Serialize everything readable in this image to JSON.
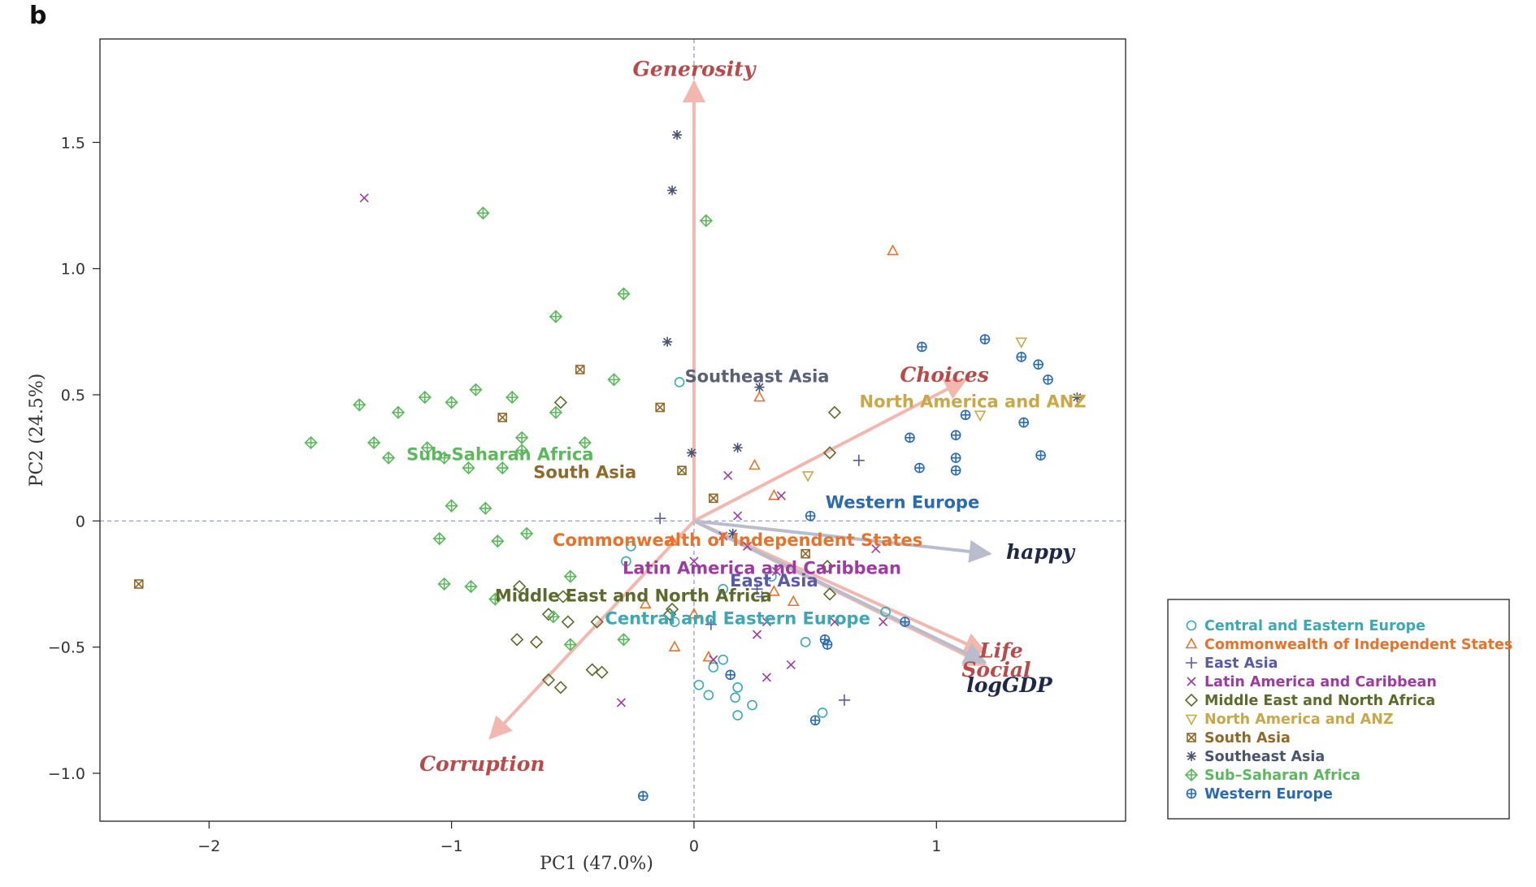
{
  "panel_letter": "b",
  "chart_data": {
    "type": "scatter",
    "subtype": "pca-biplot",
    "title": "",
    "xlabel": "PC1 (47.0%)",
    "ylabel": "PC2 (24.5%)",
    "xlim": [
      -2.45,
      1.78
    ],
    "ylim": [
      -1.19,
      1.91
    ],
    "xticks": [
      -2,
      -1,
      0,
      1
    ],
    "xtick_labels": [
      "−2",
      "−1",
      "0",
      "1"
    ],
    "yticks": [
      -1.0,
      -0.5,
      0,
      0.5,
      1.0,
      1.5
    ],
    "ytick_labels": [
      "−1.0",
      "−0.5",
      "0",
      "0.5",
      "1.0",
      "1.5"
    ],
    "zero_lines": true,
    "grid": false,
    "legend_position": "bottom-right, outside plot",
    "series": [
      {
        "name": "Central and Eastern Europe",
        "color": "#3ba8b5",
        "marker": "circle",
        "points": [
          [
            -0.06,
            0.55
          ],
          [
            -0.28,
            -0.16
          ],
          [
            -0.26,
            -0.1
          ],
          [
            0.12,
            -0.27
          ],
          [
            -0.08,
            -0.4
          ],
          [
            0.08,
            -0.58
          ],
          [
            0.12,
            -0.55
          ],
          [
            0.02,
            -0.65
          ],
          [
            0.06,
            -0.69
          ],
          [
            0.18,
            -0.66
          ],
          [
            0.17,
            -0.7
          ],
          [
            0.24,
            -0.73
          ],
          [
            0.18,
            -0.77
          ],
          [
            0.53,
            -0.76
          ],
          [
            0.46,
            -0.48
          ],
          [
            0.79,
            -0.36
          ],
          [
            0.32,
            -0.22
          ]
        ]
      },
      {
        "name": "Commonwealth of Independent States",
        "color": "#e8722a",
        "marker": "triangle-up",
        "points": [
          [
            0.82,
            1.07
          ],
          [
            0.27,
            0.49
          ],
          [
            0.25,
            0.22
          ],
          [
            0.33,
            0.1
          ],
          [
            -0.09,
            -0.08
          ],
          [
            -0.2,
            -0.33
          ],
          [
            0.0,
            -0.37
          ],
          [
            -0.08,
            -0.5
          ],
          [
            0.06,
            -0.54
          ],
          [
            0.33,
            -0.28
          ],
          [
            0.41,
            -0.32
          ]
        ]
      },
      {
        "name": "East Asia",
        "color": "#5a5aa8",
        "marker": "plus",
        "points": [
          [
            0.68,
            0.24
          ],
          [
            -0.14,
            0.01
          ],
          [
            0.28,
            -0.3
          ],
          [
            0.26,
            -0.27
          ],
          [
            0.62,
            -0.71
          ],
          [
            0.07,
            -0.41
          ]
        ]
      },
      {
        "name": "Latin America and Caribbean",
        "color": "#9c3ca0",
        "marker": "cross",
        "points": [
          [
            -1.36,
            1.28
          ],
          [
            0.14,
            0.18
          ],
          [
            0.36,
            0.1
          ],
          [
            0.18,
            0.02
          ],
          [
            0.12,
            -0.06
          ],
          [
            0.22,
            -0.1
          ],
          [
            0.0,
            -0.16
          ],
          [
            0.34,
            -0.2
          ],
          [
            0.3,
            -0.4
          ],
          [
            0.4,
            -0.57
          ],
          [
            0.3,
            -0.62
          ],
          [
            0.58,
            -0.4
          ],
          [
            0.75,
            -0.11
          ],
          [
            0.78,
            -0.4
          ],
          [
            -0.3,
            -0.72
          ],
          [
            0.08,
            -0.55
          ],
          [
            0.26,
            -0.45
          ]
        ]
      },
      {
        "name": "Middle East and North Africa",
        "color": "#5c6b2c",
        "marker": "diamond",
        "points": [
          [
            -0.55,
            0.47
          ],
          [
            0.56,
            0.27
          ],
          [
            0.58,
            0.43
          ],
          [
            0.55,
            -0.18
          ],
          [
            0.56,
            -0.29
          ],
          [
            -0.55,
            -0.66
          ],
          [
            -0.6,
            -0.63
          ],
          [
            -0.65,
            -0.48
          ],
          [
            -0.73,
            -0.47
          ],
          [
            -0.38,
            -0.6
          ],
          [
            -0.6,
            -0.37
          ],
          [
            -0.54,
            -0.3
          ],
          [
            -0.72,
            -0.26
          ],
          [
            -0.52,
            -0.4
          ],
          [
            -0.42,
            -0.59
          ],
          [
            -0.4,
            -0.4
          ],
          [
            -0.09,
            -0.35
          ],
          [
            -0.1,
            -0.37
          ]
        ]
      },
      {
        "name": "North America and ANZ",
        "color": "#c9a84a",
        "marker": "triangle-down",
        "points": [
          [
            1.35,
            0.71
          ],
          [
            1.18,
            0.42
          ],
          [
            0.47,
            0.18
          ]
        ]
      },
      {
        "name": "South Asia",
        "color": "#8f6a2c",
        "marker": "square-x",
        "points": [
          [
            -2.29,
            -0.25
          ],
          [
            -0.47,
            0.6
          ],
          [
            -0.79,
            0.41
          ],
          [
            -0.14,
            0.45
          ],
          [
            -0.05,
            0.2
          ],
          [
            0.08,
            0.09
          ],
          [
            0.46,
            -0.13
          ]
        ]
      },
      {
        "name": "Southeast Asia",
        "color": "#4a5470",
        "marker": "asterisk",
        "points": [
          [
            -0.07,
            1.53
          ],
          [
            -0.09,
            1.31
          ],
          [
            -0.11,
            0.71
          ],
          [
            0.27,
            0.53
          ],
          [
            0.18,
            0.29
          ],
          [
            -0.01,
            0.27
          ],
          [
            1.58,
            0.49
          ],
          [
            0.16,
            -0.05
          ]
        ]
      },
      {
        "name": "Sub–Saharan Africa",
        "color": "#5cb85c",
        "marker": "diamond-plus",
        "points": [
          [
            -0.87,
            1.22
          ],
          [
            0.05,
            1.19
          ],
          [
            -0.29,
            0.9
          ],
          [
            -0.57,
            0.81
          ],
          [
            -0.33,
            0.56
          ],
          [
            -1.38,
            0.46
          ],
          [
            -1.22,
            0.43
          ],
          [
            -1.11,
            0.49
          ],
          [
            -1.0,
            0.47
          ],
          [
            -0.9,
            0.52
          ],
          [
            -0.75,
            0.49
          ],
          [
            -0.57,
            0.43
          ],
          [
            -1.58,
            0.31
          ],
          [
            -1.32,
            0.31
          ],
          [
            -1.26,
            0.25
          ],
          [
            -1.1,
            0.29
          ],
          [
            -1.03,
            0.25
          ],
          [
            -0.93,
            0.21
          ],
          [
            -0.79,
            0.21
          ],
          [
            -0.71,
            0.28
          ],
          [
            -0.71,
            0.33
          ],
          [
            -0.45,
            0.31
          ],
          [
            -1.0,
            0.06
          ],
          [
            -0.86,
            0.05
          ],
          [
            -1.05,
            -0.07
          ],
          [
            -0.81,
            -0.08
          ],
          [
            -0.69,
            -0.05
          ],
          [
            -1.03,
            -0.25
          ],
          [
            -0.92,
            -0.26
          ],
          [
            -0.82,
            -0.31
          ],
          [
            -0.58,
            -0.38
          ],
          [
            -0.51,
            -0.22
          ],
          [
            -0.51,
            -0.49
          ],
          [
            -0.29,
            -0.47
          ]
        ]
      },
      {
        "name": "Western Europe",
        "color": "#2a6bb0",
        "marker": "circle-plus",
        "points": [
          [
            0.94,
            0.69
          ],
          [
            1.2,
            0.72
          ],
          [
            1.35,
            0.65
          ],
          [
            1.42,
            0.62
          ],
          [
            1.46,
            0.56
          ],
          [
            1.12,
            0.42
          ],
          [
            1.36,
            0.39
          ],
          [
            1.43,
            0.26
          ],
          [
            0.89,
            0.33
          ],
          [
            1.08,
            0.34
          ],
          [
            1.08,
            0.25
          ],
          [
            1.08,
            0.2
          ],
          [
            0.93,
            0.21
          ],
          [
            0.48,
            0.02
          ],
          [
            0.87,
            -0.4
          ],
          [
            0.54,
            -0.47
          ],
          [
            0.55,
            -0.49
          ],
          [
            0.5,
            -0.79
          ],
          [
            0.15,
            -0.61
          ],
          [
            -0.21,
            -1.09
          ]
        ]
      }
    ],
    "loadings": [
      {
        "name": "Generosity",
        "x": 0.0,
        "y": 1.74,
        "color": "#b84a4a",
        "arrow_color": "#f2b8b0"
      },
      {
        "name": "Choices",
        "x": 1.12,
        "y": 0.56,
        "color": "#b84a4a",
        "arrow_color": "#f2b8b0"
      },
      {
        "name": "happy",
        "x": 1.22,
        "y": -0.13,
        "color": "#1e2a45",
        "arrow_color": "#b8bccc"
      },
      {
        "name": "Life",
        "x": 1.2,
        "y": -0.52,
        "color": "#b84a4a",
        "arrow_color": "#f2b8b0"
      },
      {
        "name": "Social",
        "x": 1.2,
        "y": -0.57,
        "color": "#b84a4a",
        "arrow_color": "#f2b8b0"
      },
      {
        "name": "logGDP",
        "x": 1.2,
        "y": -0.56,
        "color": "#1e2a45",
        "arrow_color": "#b8bccc"
      },
      {
        "name": "Corruption",
        "x": -0.84,
        "y": -0.86,
        "color": "#b84a4a",
        "arrow_color": "#f2b8b0"
      }
    ],
    "group_labels": [
      {
        "name": "Southeast Asia",
        "x": 0.26,
        "y": 0.57,
        "color": "#5a6078"
      },
      {
        "name": "North America and ANZ",
        "x": 1.15,
        "y": 0.47,
        "color": "#c9a84a"
      },
      {
        "name": "Sub–Saharan Africa",
        "x": -0.8,
        "y": 0.26,
        "color": "#5cb85c"
      },
      {
        "name": "South Asia",
        "x": -0.45,
        "y": 0.19,
        "color": "#8f6a2c"
      },
      {
        "name": "Western Europe",
        "x": 0.86,
        "y": 0.07,
        "color": "#2a6bb0"
      },
      {
        "name": "Commonwealth of Independent States",
        "x": 0.18,
        "y": -0.08,
        "color": "#e8722a"
      },
      {
        "name": "Latin America and Caribbean",
        "x": 0.28,
        "y": -0.19,
        "color": "#9c3ca0"
      },
      {
        "name": "East Asia",
        "x": 0.33,
        "y": -0.24,
        "color": "#5a5aa8"
      },
      {
        "name": "Middle East and North Africa",
        "x": -0.25,
        "y": -0.3,
        "color": "#5c6b2c"
      },
      {
        "name": "Central and Eastern Europe",
        "x": 0.18,
        "y": -0.39,
        "color": "#3ba8b5"
      }
    ]
  }
}
